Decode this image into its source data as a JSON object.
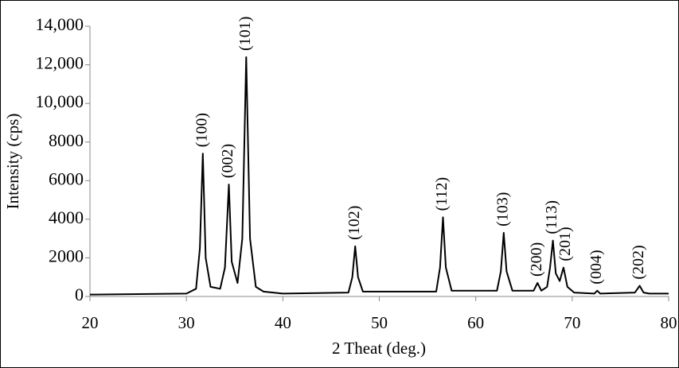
{
  "chart_data": {
    "type": "line",
    "x_label": "2 Theat (deg.)",
    "y_label": "Intensity (cps)",
    "xlim": [
      20,
      80
    ],
    "xticks": [
      20,
      30,
      40,
      50,
      60,
      70,
      80
    ],
    "ylim": [
      0,
      14000
    ],
    "yticks": [
      0,
      2000,
      4000,
      6000,
      8000,
      {
        "value": 10000,
        "label": "10,000"
      },
      {
        "value": 12000,
        "label": "12,000"
      },
      {
        "value": 14000,
        "label": "14,000"
      }
    ],
    "grid": false,
    "x": [
      20,
      30,
      31.0,
      31.4,
      31.7,
      32.0,
      32.5,
      33.5,
      34.0,
      34.4,
      34.7,
      35.3,
      35.8,
      36.2,
      36.6,
      37.2,
      38,
      40,
      46.8,
      47.2,
      47.5,
      47.8,
      48.3,
      55.9,
      56.3,
      56.6,
      56.9,
      57.5,
      62.2,
      62.6,
      62.9,
      63.2,
      63.8,
      66.0,
      66.4,
      66.8,
      67.4,
      67.7,
      68.0,
      68.3,
      68.7,
      69.1,
      69.5,
      70.2,
      72.3,
      72.6,
      72.9,
      76.5,
      77.0,
      77.4,
      78,
      80
    ],
    "series": [
      {
        "color": "#000000",
        "values": [
          100,
          150,
          400,
          2500,
          7400,
          2000,
          500,
          400,
          1500,
          5800,
          1800,
          700,
          3000,
          12400,
          3000,
          500,
          250,
          150,
          200,
          1000,
          2600,
          1000,
          250,
          250,
          1500,
          4100,
          1500,
          300,
          300,
          1300,
          3300,
          1300,
          300,
          300,
          700,
          300,
          500,
          1500,
          2900,
          1200,
          800,
          1500,
          500,
          200,
          150,
          300,
          150,
          200,
          550,
          200,
          150,
          150
        ]
      }
    ],
    "annotations": [
      {
        "text": "(100)",
        "x": 31.7,
        "y": 7400
      },
      {
        "text": "(002)",
        "x": 34.4,
        "y": 5800
      },
      {
        "text": "(101)",
        "x": 36.2,
        "y": 12400
      },
      {
        "text": "(102)",
        "x": 47.5,
        "y": 2600
      },
      {
        "text": "(112)",
        "x": 56.6,
        "y": 4100
      },
      {
        "text": "(103)",
        "x": 62.9,
        "y": 3300
      },
      {
        "text": "(200)",
        "x": 66.4,
        "y": 700
      },
      {
        "text": "(113)",
        "x": 68.0,
        "y": 2900
      },
      {
        "text": "(201)",
        "x": 69.4,
        "y": 1500
      },
      {
        "text": "(004)",
        "x": 72.6,
        "y": 300
      },
      {
        "text": "(202)",
        "x": 77.0,
        "y": 550
      }
    ]
  }
}
